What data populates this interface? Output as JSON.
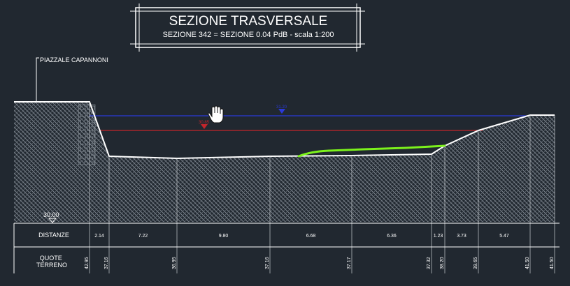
{
  "title": {
    "main": "SEZIONE TRASVERSALE",
    "sub": "SEZIONE 342 = SEZIONE 0.04 PdB - scala 1:200"
  },
  "annotation": {
    "piazzale": "PIAZZALE CAPANNONI"
  },
  "datum": {
    "label": "30.00"
  },
  "water_levels": [
    {
      "label": "31.20",
      "color": "#2b3ad8"
    },
    {
      "label": "30.85",
      "color": "#c3252b"
    }
  ],
  "table": {
    "distances_header": "DISTANZE",
    "elevations_header": "QUOTE\nTERRENO",
    "distances": [
      "2.14",
      "7.22",
      "9.80",
      "6.68",
      "6.36",
      "1.23",
      "3.73",
      "5.47"
    ],
    "elevations": [
      "42.95",
      "37.16",
      "36.95",
      "37.16",
      "37.17",
      "37.32",
      "38.20",
      "39.65",
      "41.50",
      "41.50"
    ]
  },
  "colors": {
    "background": "#212830",
    "line": "#ffffff",
    "hatch": "#7b838c",
    "highlight": "#7cf21c"
  },
  "icons": {
    "cursor": "hand-cursor-icon"
  }
}
